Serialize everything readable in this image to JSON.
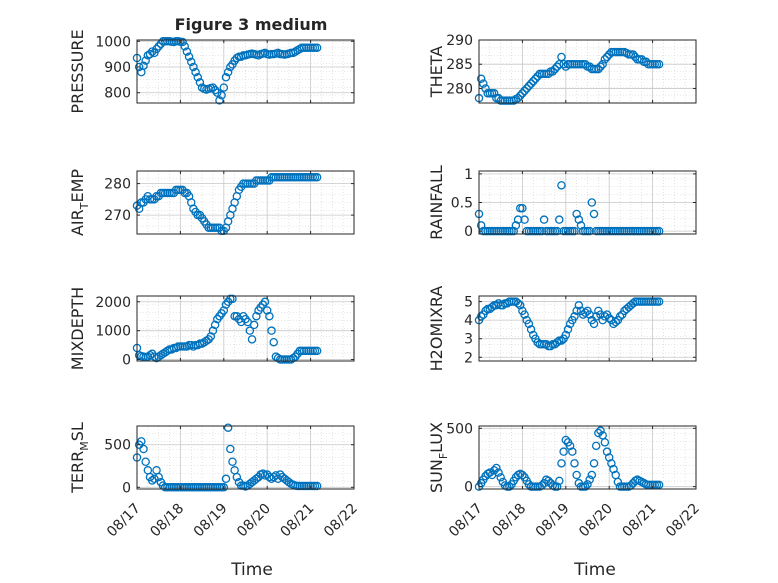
{
  "title": "Figure 3 medium",
  "marker_color": "#0072bd",
  "x_ticks": [
    "08/17",
    "08/18",
    "08/19",
    "08/20",
    "08/21",
    "08/22"
  ],
  "x_label": "Time",
  "chart_data": [
    {
      "type": "scatter",
      "ylabel": "PRESSURE",
      "ylim": [
        760,
        1005
      ],
      "yticks": [
        800,
        900,
        1000
      ],
      "x": [
        0.0,
        0.05,
        0.1,
        0.15,
        0.2,
        0.25,
        0.3,
        0.35,
        0.4,
        0.45,
        0.5,
        0.55,
        0.6,
        0.65,
        0.7,
        0.75,
        0.8,
        0.85,
        0.9,
        0.95,
        1.0,
        1.05,
        1.1,
        1.15,
        1.2,
        1.25,
        1.3,
        1.35,
        1.4,
        1.45,
        1.5,
        1.55,
        1.6,
        1.65,
        1.7,
        1.75,
        1.8,
        1.85,
        1.9,
        1.95,
        2.0,
        2.05,
        2.1,
        2.15,
        2.2,
        2.25,
        2.3,
        2.35,
        2.4,
        2.45,
        2.5,
        2.55,
        2.6,
        2.65,
        2.7,
        2.75,
        2.8,
        2.85,
        2.9,
        2.95,
        3.0,
        3.05,
        3.1,
        3.15,
        3.2,
        3.25,
        3.3,
        3.35,
        3.4,
        3.45,
        3.5,
        3.55,
        3.6,
        3.65,
        3.7,
        3.75,
        3.8,
        3.85,
        3.9,
        3.95,
        4.0,
        4.05,
        4.1,
        4.15
      ],
      "y": [
        935,
        900,
        880,
        905,
        925,
        945,
        950,
        960,
        955,
        970,
        980,
        990,
        1000,
        1000,
        1000,
        1000,
        998,
        997,
        1000,
        1000,
        998,
        997,
        980,
        960,
        940,
        920,
        900,
        880,
        860,
        840,
        820,
        815,
        812,
        815,
        818,
        820,
        810,
        800,
        770,
        790,
        820,
        860,
        880,
        900,
        910,
        925,
        935,
        940,
        940,
        945,
        945,
        948,
        950,
        952,
        950,
        948,
        945,
        950,
        952,
        955,
        950,
        948,
        950,
        950,
        952,
        955,
        950,
        950,
        948,
        950,
        952,
        955,
        955,
        960,
        965,
        970,
        975,
        975,
        975,
        975,
        975,
        975,
        975,
        975
      ]
    },
    {
      "type": "scatter",
      "ylabel": "THETA",
      "ylim": [
        277,
        290
      ],
      "yticks": [
        280,
        285,
        290
      ],
      "x": [
        0.0,
        0.05,
        0.1,
        0.15,
        0.2,
        0.25,
        0.3,
        0.35,
        0.4,
        0.45,
        0.5,
        0.55,
        0.6,
        0.65,
        0.7,
        0.75,
        0.8,
        0.85,
        0.9,
        0.95,
        1.0,
        1.05,
        1.1,
        1.15,
        1.2,
        1.25,
        1.3,
        1.35,
        1.4,
        1.45,
        1.5,
        1.55,
        1.6,
        1.65,
        1.7,
        1.75,
        1.8,
        1.85,
        1.9,
        1.95,
        2.0,
        2.05,
        2.1,
        2.15,
        2.2,
        2.25,
        2.3,
        2.35,
        2.4,
        2.45,
        2.5,
        2.55,
        2.6,
        2.65,
        2.7,
        2.75,
        2.8,
        2.85,
        2.9,
        2.95,
        3.0,
        3.05,
        3.1,
        3.15,
        3.2,
        3.25,
        3.3,
        3.35,
        3.4,
        3.45,
        3.5,
        3.55,
        3.6,
        3.65,
        3.7,
        3.75,
        3.8,
        3.85,
        3.9,
        3.95,
        4.0,
        4.05,
        4.1,
        4.15
      ],
      "y": [
        278,
        282,
        281,
        280,
        279,
        279,
        279,
        279,
        278,
        278,
        277.5,
        277.5,
        277.5,
        277.5,
        277.5,
        277.5,
        277.5,
        277.8,
        278,
        278.5,
        279,
        279.5,
        280,
        280.5,
        281,
        281.5,
        282,
        282.5,
        283,
        283,
        283,
        283,
        283,
        283.5,
        283.5,
        284,
        284.5,
        285,
        286.5,
        285,
        284.5,
        285,
        285,
        285,
        285,
        285,
        285,
        285,
        285,
        285,
        284.5,
        284.5,
        284,
        284,
        284,
        284,
        284.5,
        285,
        286,
        286.5,
        287,
        287.5,
        287.5,
        287.5,
        287.5,
        287.5,
        287.5,
        287.5,
        287.3,
        287,
        287,
        287,
        286.5,
        286,
        286,
        286,
        285.5,
        285.5,
        285,
        285,
        285,
        285,
        285,
        285
      ]
    },
    {
      "type": "scatter",
      "ylabel": "AIR_TEMP",
      "ylim": [
        264,
        284
      ],
      "yticks": [
        270,
        280
      ],
      "x": [
        0.0,
        0.05,
        0.1,
        0.15,
        0.2,
        0.25,
        0.3,
        0.35,
        0.4,
        0.45,
        0.5,
        0.55,
        0.6,
        0.65,
        0.7,
        0.75,
        0.8,
        0.85,
        0.9,
        0.95,
        1.0,
        1.05,
        1.1,
        1.15,
        1.2,
        1.25,
        1.3,
        1.35,
        1.4,
        1.45,
        1.5,
        1.55,
        1.6,
        1.65,
        1.7,
        1.75,
        1.8,
        1.85,
        1.9,
        1.95,
        2.0,
        2.05,
        2.1,
        2.15,
        2.2,
        2.25,
        2.3,
        2.35,
        2.4,
        2.45,
        2.5,
        2.55,
        2.6,
        2.65,
        2.7,
        2.75,
        2.8,
        2.85,
        2.9,
        2.95,
        3.0,
        3.05,
        3.1,
        3.15,
        3.2,
        3.25,
        3.3,
        3.35,
        3.4,
        3.45,
        3.5,
        3.55,
        3.6,
        3.65,
        3.7,
        3.75,
        3.8,
        3.85,
        3.9,
        3.95,
        4.0,
        4.05,
        4.1,
        4.15
      ],
      "y": [
        273,
        272,
        274,
        274,
        275,
        276,
        275,
        275,
        275,
        276,
        276,
        277,
        277,
        277,
        277,
        277,
        277,
        277,
        278,
        278,
        278,
        278,
        277,
        277,
        276,
        274,
        272,
        271,
        270,
        270,
        269,
        268,
        267,
        266,
        266,
        266,
        266,
        266,
        266,
        265,
        265,
        266,
        268,
        270,
        272,
        274,
        276,
        278,
        279,
        280,
        280,
        280,
        280,
        280,
        280,
        281,
        281,
        281,
        281,
        281,
        281,
        281,
        282,
        282,
        282,
        282,
        282,
        282,
        282,
        282,
        282,
        282,
        282,
        282,
        282,
        282,
        282,
        282,
        282,
        282,
        282,
        282,
        282,
        282
      ]
    },
    {
      "type": "scatter",
      "ylabel": "RAINFALL",
      "ylim": [
        -0.05,
        1.05
      ],
      "yticks": [
        0,
        0.5,
        1
      ],
      "x": [
        0.0,
        0.05,
        0.1,
        0.15,
        0.2,
        0.25,
        0.3,
        0.35,
        0.4,
        0.45,
        0.5,
        0.55,
        0.6,
        0.65,
        0.7,
        0.75,
        0.8,
        0.85,
        0.9,
        0.95,
        1.0,
        1.05,
        1.1,
        1.15,
        1.2,
        1.25,
        1.3,
        1.35,
        1.4,
        1.45,
        1.5,
        1.55,
        1.6,
        1.65,
        1.7,
        1.75,
        1.8,
        1.85,
        1.9,
        1.95,
        2.0,
        2.05,
        2.1,
        2.15,
        2.2,
        2.25,
        2.3,
        2.35,
        2.4,
        2.45,
        2.5,
        2.55,
        2.6,
        2.65,
        2.7,
        2.75,
        2.8,
        2.85,
        2.9,
        2.95,
        3.0,
        3.05,
        3.1,
        3.15,
        3.2,
        3.25,
        3.3,
        3.35,
        3.4,
        3.45,
        3.5,
        3.55,
        3.6,
        3.65,
        3.7,
        3.75,
        3.8,
        3.85,
        3.9,
        3.95,
        4.0,
        4.05,
        4.1,
        4.15
      ],
      "y": [
        0.3,
        0.1,
        0,
        0,
        0,
        0,
        0,
        0,
        0,
        0,
        0,
        0,
        0,
        0,
        0,
        0,
        0,
        0.1,
        0.2,
        0.4,
        0.4,
        0.2,
        0,
        0,
        0,
        0,
        0,
        0,
        0,
        0,
        0.2,
        0,
        0,
        0,
        0,
        0,
        0,
        0.2,
        0.8,
        0,
        0,
        0,
        0,
        0,
        0,
        0.3,
        0.2,
        0.1,
        0,
        0,
        0,
        0,
        0.5,
        0.3,
        0,
        0,
        0,
        0,
        0,
        0,
        0,
        0,
        0,
        0,
        0,
        0,
        0,
        0,
        0,
        0,
        0,
        0,
        0,
        0,
        0,
        0,
        0,
        0,
        0,
        0,
        0,
        0,
        0,
        0
      ]
    },
    {
      "type": "scatter",
      "ylabel": "MIXDEPTH",
      "ylim": [
        -50,
        2200
      ],
      "yticks": [
        0,
        1000,
        2000
      ],
      "x": [
        0.0,
        0.05,
        0.1,
        0.15,
        0.2,
        0.25,
        0.3,
        0.35,
        0.4,
        0.45,
        0.5,
        0.55,
        0.6,
        0.65,
        0.7,
        0.75,
        0.8,
        0.85,
        0.9,
        0.95,
        1.0,
        1.05,
        1.1,
        1.15,
        1.2,
        1.25,
        1.3,
        1.35,
        1.4,
        1.45,
        1.5,
        1.55,
        1.6,
        1.65,
        1.7,
        1.75,
        1.8,
        1.85,
        1.9,
        1.95,
        2.0,
        2.05,
        2.1,
        2.15,
        2.2,
        2.25,
        2.3,
        2.35,
        2.4,
        2.45,
        2.5,
        2.55,
        2.6,
        2.65,
        2.7,
        2.75,
        2.8,
        2.85,
        2.9,
        2.95,
        3.0,
        3.05,
        3.1,
        3.15,
        3.2,
        3.25,
        3.3,
        3.35,
        3.4,
        3.45,
        3.5,
        3.55,
        3.6,
        3.65,
        3.7,
        3.75,
        3.8,
        3.85,
        3.9,
        3.95,
        4.0,
        4.05,
        4.1,
        4.15
      ],
      "y": [
        400,
        150,
        120,
        100,
        80,
        100,
        150,
        200,
        100,
        50,
        100,
        150,
        200,
        250,
        300,
        350,
        350,
        400,
        400,
        450,
        450,
        450,
        450,
        450,
        500,
        500,
        450,
        500,
        500,
        550,
        550,
        600,
        650,
        700,
        800,
        1000,
        1200,
        1400,
        1500,
        1600,
        1700,
        1900,
        2000,
        2100,
        2100,
        1500,
        1500,
        1400,
        1300,
        1500,
        1400,
        1300,
        1000,
        700,
        1200,
        1500,
        1700,
        1800,
        1900,
        2000,
        1700,
        1500,
        1000,
        600,
        100,
        50,
        0,
        0,
        0,
        0,
        0,
        0,
        50,
        100,
        200,
        300,
        300,
        300,
        300,
        300,
        300,
        300,
        300,
        300
      ]
    },
    {
      "type": "scatter",
      "ylabel": "H2OMIXRA",
      "ylim": [
        1.8,
        5.3
      ],
      "yticks": [
        2,
        3,
        4,
        5
      ],
      "x": [
        0.0,
        0.05,
        0.1,
        0.15,
        0.2,
        0.25,
        0.3,
        0.35,
        0.4,
        0.45,
        0.5,
        0.55,
        0.6,
        0.65,
        0.7,
        0.75,
        0.8,
        0.85,
        0.9,
        0.95,
        1.0,
        1.05,
        1.1,
        1.15,
        1.2,
        1.25,
        1.3,
        1.35,
        1.4,
        1.45,
        1.5,
        1.55,
        1.6,
        1.65,
        1.7,
        1.75,
        1.8,
        1.85,
        1.9,
        1.95,
        2.0,
        2.05,
        2.1,
        2.15,
        2.2,
        2.25,
        2.3,
        2.35,
        2.4,
        2.45,
        2.5,
        2.55,
        2.6,
        2.65,
        2.7,
        2.75,
        2.8,
        2.85,
        2.9,
        2.95,
        3.0,
        3.05,
        3.1,
        3.15,
        3.2,
        3.25,
        3.3,
        3.35,
        3.4,
        3.45,
        3.5,
        3.55,
        3.6,
        3.65,
        3.7,
        3.75,
        3.8,
        3.85,
        3.9,
        3.95,
        4.0,
        4.05,
        4.1,
        4.15
      ],
      "y": [
        4.0,
        4.2,
        4.3,
        4.5,
        4.6,
        4.6,
        4.7,
        4.8,
        4.8,
        4.9,
        4.8,
        4.8,
        4.9,
        4.9,
        5.0,
        5.0,
        5.0,
        5.0,
        4.9,
        4.8,
        4.5,
        4.3,
        4.0,
        3.8,
        3.5,
        3.2,
        3.0,
        2.8,
        2.7,
        2.7,
        2.7,
        2.7,
        2.6,
        2.6,
        2.7,
        2.7,
        2.8,
        2.9,
        2.9,
        3.0,
        3.2,
        3.5,
        3.8,
        4.0,
        4.2,
        4.5,
        4.8,
        4.5,
        4.3,
        4.4,
        4.5,
        4.3,
        4.0,
        3.8,
        4.2,
        4.5,
        4.3,
        4.0,
        4.2,
        4.3,
        4.1,
        4.0,
        3.8,
        3.9,
        4.0,
        4.2,
        4.3,
        4.5,
        4.6,
        4.7,
        4.8,
        4.9,
        5.0,
        5.0,
        5.0,
        5.0,
        5.0,
        5.0,
        5.0,
        5.0,
        5.0,
        5.0,
        5.0,
        5.0
      ]
    },
    {
      "type": "scatter",
      "ylabel": "TERR_MSL",
      "ylim": [
        -20,
        720
      ],
      "yticks": [
        0,
        500
      ],
      "x": [
        0.0,
        0.05,
        0.1,
        0.15,
        0.2,
        0.25,
        0.3,
        0.35,
        0.4,
        0.45,
        0.5,
        0.55,
        0.6,
        0.65,
        0.7,
        0.75,
        0.8,
        0.85,
        0.9,
        0.95,
        1.0,
        1.05,
        1.1,
        1.15,
        1.2,
        1.25,
        1.3,
        1.35,
        1.4,
        1.45,
        1.5,
        1.55,
        1.6,
        1.65,
        1.7,
        1.75,
        1.8,
        1.85,
        1.9,
        1.95,
        2.0,
        2.05,
        2.1,
        2.15,
        2.2,
        2.25,
        2.3,
        2.35,
        2.4,
        2.45,
        2.5,
        2.55,
        2.6,
        2.65,
        2.7,
        2.75,
        2.8,
        2.85,
        2.9,
        2.95,
        3.0,
        3.05,
        3.1,
        3.15,
        3.2,
        3.25,
        3.3,
        3.35,
        3.4,
        3.45,
        3.5,
        3.55,
        3.6,
        3.65,
        3.7,
        3.75,
        3.8,
        3.85,
        3.9,
        3.95,
        4.0,
        4.05,
        4.1,
        4.15
      ],
      "y": [
        350,
        500,
        540,
        450,
        300,
        200,
        120,
        80,
        100,
        200,
        120,
        60,
        20,
        0,
        0,
        0,
        0,
        0,
        0,
        0,
        0,
        0,
        0,
        0,
        0,
        0,
        0,
        0,
        0,
        0,
        0,
        0,
        0,
        0,
        0,
        0,
        0,
        0,
        0,
        0,
        0,
        100,
        700,
        450,
        300,
        200,
        120,
        60,
        20,
        20,
        10,
        20,
        40,
        60,
        80,
        100,
        120,
        150,
        160,
        140,
        150,
        120,
        100,
        120,
        140,
        100,
        150,
        120,
        100,
        80,
        60,
        40,
        30,
        20,
        15,
        15,
        15,
        15,
        15,
        15,
        15,
        15,
        15,
        15
      ]
    },
    {
      "type": "scatter",
      "ylabel": "SUN_FLUX",
      "ylim": [
        -20,
        520
      ],
      "yticks": [
        0,
        500
      ],
      "x": [
        0.0,
        0.05,
        0.1,
        0.15,
        0.2,
        0.25,
        0.3,
        0.35,
        0.4,
        0.45,
        0.5,
        0.55,
        0.6,
        0.65,
        0.7,
        0.75,
        0.8,
        0.85,
        0.9,
        0.95,
        1.0,
        1.05,
        1.1,
        1.15,
        1.2,
        1.25,
        1.3,
        1.35,
        1.4,
        1.45,
        1.5,
        1.55,
        1.6,
        1.65,
        1.7,
        1.75,
        1.8,
        1.85,
        1.9,
        1.95,
        2.0,
        2.05,
        2.1,
        2.15,
        2.2,
        2.25,
        2.3,
        2.35,
        2.4,
        2.45,
        2.5,
        2.55,
        2.6,
        2.65,
        2.7,
        2.75,
        2.8,
        2.85,
        2.9,
        2.95,
        3.0,
        3.05,
        3.1,
        3.15,
        3.2,
        3.25,
        3.3,
        3.35,
        3.4,
        3.45,
        3.5,
        3.55,
        3.6,
        3.65,
        3.7,
        3.75,
        3.8,
        3.85,
        3.9,
        3.95,
        4.0,
        4.05,
        4.1,
        4.15
      ],
      "y": [
        0,
        30,
        60,
        90,
        110,
        120,
        100,
        140,
        160,
        120,
        80,
        40,
        10,
        0,
        0,
        20,
        50,
        80,
        100,
        110,
        100,
        80,
        50,
        20,
        0,
        0,
        0,
        0,
        0,
        10,
        30,
        60,
        50,
        30,
        10,
        0,
        0,
        50,
        200,
        300,
        400,
        380,
        350,
        300,
        200,
        100,
        30,
        0,
        0,
        0,
        20,
        60,
        100,
        200,
        350,
        460,
        480,
        440,
        380,
        300,
        250,
        200,
        150,
        100,
        40,
        0,
        0,
        0,
        0,
        0,
        10,
        30,
        50,
        60,
        50,
        40,
        30,
        20,
        15,
        15,
        15,
        15,
        15,
        15
      ]
    }
  ]
}
